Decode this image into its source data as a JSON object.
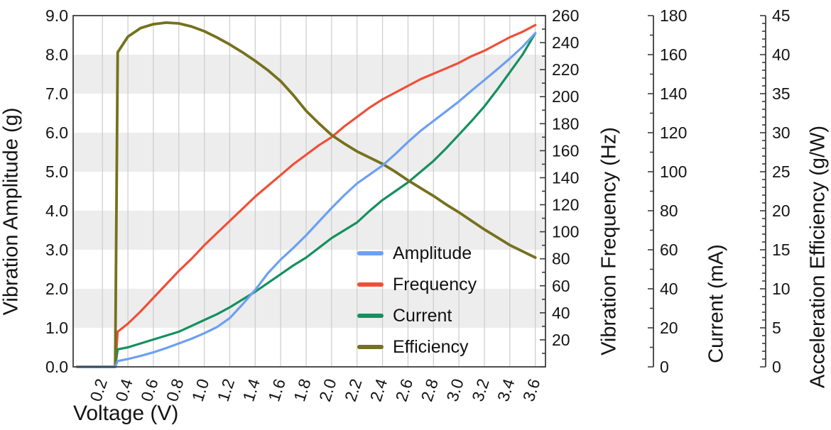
{
  "chart_data": {
    "type": "line",
    "title": "",
    "xlabel": "Voltage (V)",
    "x_range": [
      -0.03,
      3.68
    ],
    "x_ticks": [
      0.2,
      0.4,
      0.6,
      0.8,
      1.0,
      1.2,
      1.4,
      1.6,
      1.8,
      2.0,
      2.2,
      2.4,
      2.6,
      2.8,
      3.0,
      3.2,
      3.4,
      3.6
    ],
    "x_tick_rotation_deg": 72,
    "grid": "vertical gridlines + alternating horizontal bands",
    "grid_color": "#cccccc",
    "band_color": "#ededed",
    "spine_color": "#3c3c3c",
    "bands_amplitude_units": [
      [
        1,
        2
      ],
      [
        3,
        4
      ],
      [
        5,
        6
      ],
      [
        7,
        8
      ]
    ],
    "axes": {
      "amplitude": {
        "label": "Vibration Amplitude (g)",
        "min": 0,
        "max": 9,
        "major_step": 1,
        "minor_step": 0,
        "side": "left",
        "label_format": "one-decimal"
      },
      "frequency": {
        "label": "Vibration Frequency (Hz)",
        "min": 0,
        "max": 260,
        "major_step": 20,
        "minor_step": 10,
        "side": "right-attached",
        "first_label": 20
      },
      "current": {
        "label": "Current (mA)",
        "min": 0,
        "max": 180,
        "major_step": 20,
        "minor_step": 10,
        "side": "right-offset-1",
        "first_label": 0
      },
      "efficiency": {
        "label": "Acceleration Efficiency (g/W)",
        "min": 0,
        "max": 45,
        "major_step": 5,
        "minor_step": 1,
        "side": "right-offset-2",
        "first_label": 0
      }
    },
    "series": [
      {
        "name": "Amplitude",
        "axis": "amplitude",
        "color": "#6ca0f1",
        "x": [
          0.0,
          0.28,
          0.3,
          0.32,
          0.4,
          0.5,
          0.6,
          0.7,
          0.8,
          0.9,
          1.0,
          1.1,
          1.2,
          1.3,
          1.4,
          1.5,
          1.6,
          1.7,
          1.8,
          1.9,
          2.0,
          2.1,
          2.2,
          2.3,
          2.4,
          2.5,
          2.6,
          2.7,
          2.8,
          2.9,
          3.0,
          3.1,
          3.2,
          3.3,
          3.4,
          3.5,
          3.6
        ],
        "y": [
          0,
          0,
          0,
          0.15,
          0.2,
          0.28,
          0.37,
          0.48,
          0.6,
          0.72,
          0.86,
          1.02,
          1.25,
          1.6,
          1.97,
          2.4,
          2.75,
          3.05,
          3.37,
          3.72,
          4.07,
          4.4,
          4.7,
          4.93,
          5.16,
          5.45,
          5.76,
          6.05,
          6.3,
          6.55,
          6.8,
          7.08,
          7.35,
          7.62,
          7.9,
          8.2,
          8.55
        ]
      },
      {
        "name": "Frequency",
        "axis": "frequency",
        "color": "#ef4f38",
        "x": [
          0.0,
          0.28,
          0.3,
          0.32,
          0.4,
          0.5,
          0.6,
          0.7,
          0.8,
          0.9,
          1.0,
          1.1,
          1.2,
          1.3,
          1.4,
          1.5,
          1.6,
          1.7,
          1.8,
          1.9,
          2.0,
          2.1,
          2.2,
          2.3,
          2.4,
          2.5,
          2.6,
          2.7,
          2.8,
          2.9,
          3.0,
          3.1,
          3.2,
          3.3,
          3.4,
          3.5,
          3.6
        ],
        "y": [
          0,
          0,
          0,
          26,
          32,
          41,
          51,
          61,
          71,
          80,
          90,
          99,
          108,
          117,
          126,
          134,
          142,
          150,
          157,
          164,
          170,
          178,
          185,
          192,
          198,
          203,
          208,
          213,
          217,
          221,
          225,
          230,
          234,
          239,
          244,
          248,
          253
        ]
      },
      {
        "name": "Current",
        "axis": "current",
        "color": "#15905f",
        "x": [
          0.0,
          0.28,
          0.3,
          0.32,
          0.4,
          0.5,
          0.6,
          0.7,
          0.8,
          0.9,
          1.0,
          1.1,
          1.2,
          1.3,
          1.4,
          1.5,
          1.6,
          1.7,
          1.8,
          1.9,
          2.0,
          2.1,
          2.2,
          2.3,
          2.4,
          2.5,
          2.6,
          2.7,
          2.8,
          2.9,
          3.0,
          3.1,
          3.2,
          3.3,
          3.4,
          3.5,
          3.6
        ],
        "y": [
          0,
          0,
          0,
          9,
          10,
          12,
          14,
          16,
          18,
          21,
          24,
          27,
          30.5,
          34.5,
          38.5,
          43,
          47.5,
          52,
          56,
          61,
          66,
          70,
          74,
          80,
          85.5,
          90,
          94.5,
          100,
          105.5,
          112,
          119,
          126,
          133.5,
          142,
          151,
          160,
          171
        ]
      },
      {
        "name": "Efficiency",
        "axis": "efficiency",
        "color": "#75711e",
        "x": [
          0.0,
          0.28,
          0.3,
          0.32,
          0.4,
          0.5,
          0.6,
          0.7,
          0.8,
          0.9,
          1.0,
          1.1,
          1.2,
          1.3,
          1.4,
          1.5,
          1.6,
          1.7,
          1.8,
          1.9,
          2.0,
          2.1,
          2.2,
          2.3,
          2.4,
          2.5,
          2.6,
          2.7,
          2.8,
          2.9,
          3.0,
          3.1,
          3.2,
          3.3,
          3.4,
          3.5,
          3.6
        ],
        "y": [
          0,
          0,
          0,
          40.3,
          42.3,
          43.4,
          43.9,
          44.1,
          44.0,
          43.6,
          43.0,
          42.2,
          41.3,
          40.3,
          39.2,
          38.0,
          36.6,
          34.8,
          32.8,
          31.2,
          29.7,
          28.6,
          27.6,
          26.8,
          26.0,
          25.0,
          23.9,
          22.9,
          21.9,
          20.8,
          19.8,
          18.7,
          17.6,
          16.6,
          15.6,
          14.8,
          14.0
        ]
      }
    ],
    "legend": {
      "position": "inside lower-right of plot",
      "items": [
        "Amplitude",
        "Frequency",
        "Current",
        "Efficiency"
      ]
    }
  }
}
